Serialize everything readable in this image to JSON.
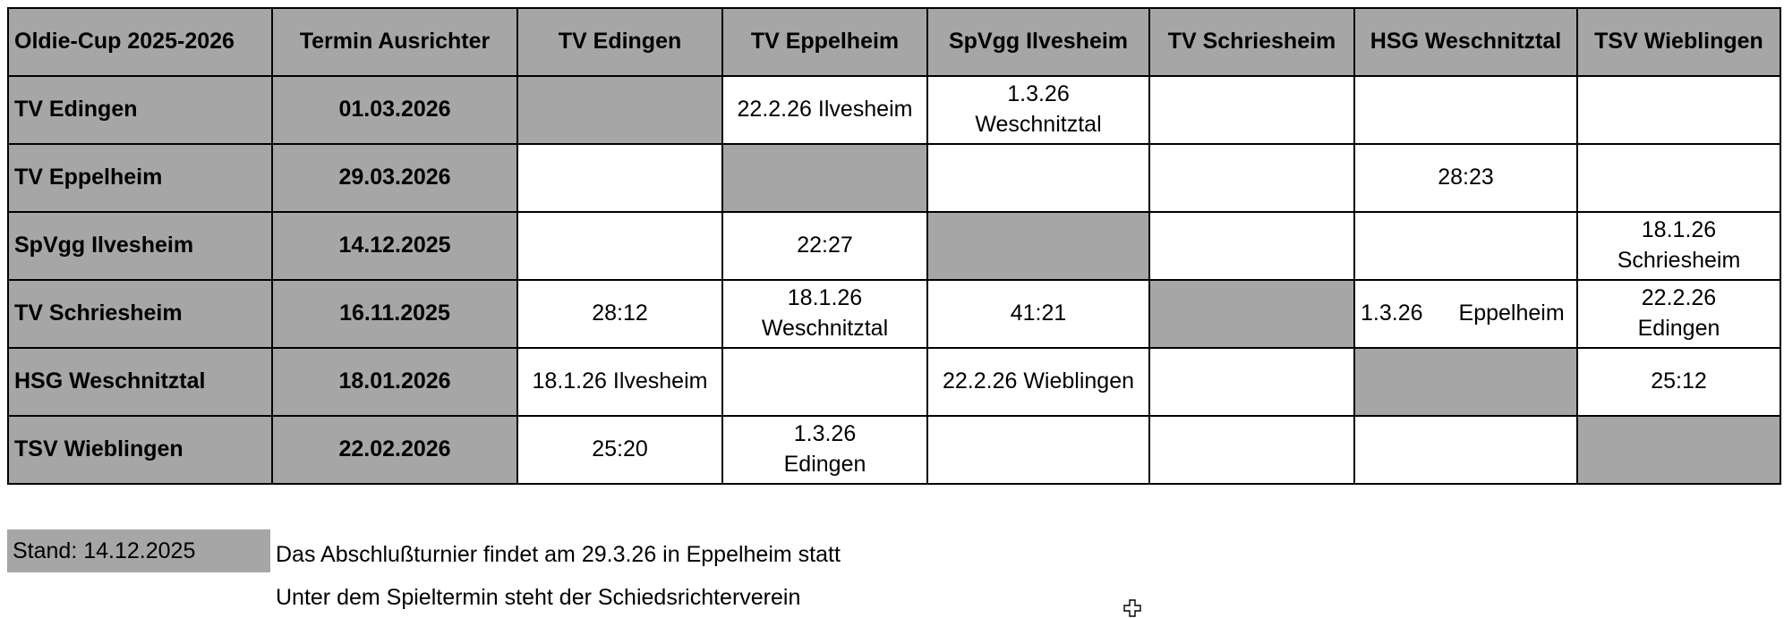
{
  "table": {
    "corner": "Oldie-Cup 2025-2026",
    "termin_header": "Termin Ausrichter",
    "columns": [
      "TV Edingen",
      "TV Eppelheim",
      "SpVgg Ilvesheim",
      "TV Schriesheim",
      "HSG Weschnitztal",
      "TSV Wieblingen"
    ],
    "rows": [
      {
        "team": "TV Edingen",
        "termin": "01.03.2026",
        "cells": [
          "",
          "22.2.26 Ilvesheim",
          "1.3.26\nWeschnitztal",
          "",
          "",
          ""
        ]
      },
      {
        "team": "TV Eppelheim",
        "termin": "29.03.2026",
        "cells": [
          "",
          "",
          "",
          "",
          "28:23",
          ""
        ]
      },
      {
        "team": "SpVgg Ilvesheim",
        "termin": "14.12.2025",
        "cells": [
          "",
          "22:27",
          "",
          "",
          "",
          "18.1.26\nSchriesheim"
        ]
      },
      {
        "team": "TV Schriesheim",
        "termin": "16.11.2025",
        "cells": [
          "28:12",
          "18.1.26\nWeschnitztal",
          "41:21",
          "",
          "1.3.26 Eppelheim",
          "22.2.26\nEdingen"
        ]
      },
      {
        "team": "HSG Weschnitztal",
        "termin": "18.01.2026",
        "cells": [
          "18.1.26 Ilvesheim",
          "",
          "22.2.26 Wieblingen",
          "",
          "",
          "25:12"
        ]
      },
      {
        "team": "TSV Wieblingen",
        "termin": "22.02.2026",
        "cells": [
          "25:20",
          "1.3.26\nEdingen",
          "",
          "",
          "",
          ""
        ]
      }
    ]
  },
  "footer": {
    "stand": "Stand: 14.12.2025",
    "note1": "Das Abschlußturnier findet am 29.3.26 in Eppelheim statt",
    "note2": "Unter dem Spieltermin steht der Schiedsrichterverein"
  },
  "colors": {
    "header_gray": "#a6a6a6",
    "cell_white": "#ffffff",
    "border": "#000000"
  },
  "icons": {
    "cursor": "cell-select-cross-cursor"
  }
}
